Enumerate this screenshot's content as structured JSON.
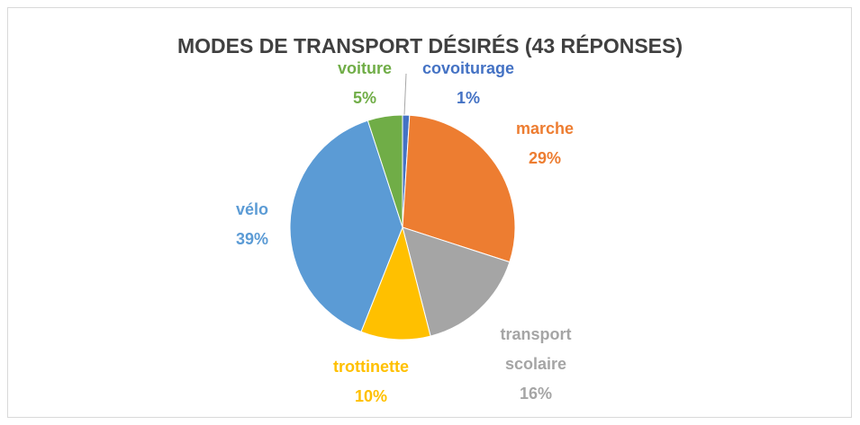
{
  "chart_data": {
    "type": "pie",
    "title": "MODES DE TRANSPORT DÉSIRÉS (43 RÉPONSES)",
    "categories": [
      "covoiturage",
      "marche",
      "transport scolaire",
      "trottinette",
      "vélo",
      "voiture"
    ],
    "values": [
      1,
      29,
      16,
      10,
      39,
      5
    ],
    "value_labels": [
      "1%",
      "29%",
      "16%",
      "10%",
      "39%",
      "5%"
    ],
    "colors": [
      "#4472c4",
      "#ed7d31",
      "#a5a5a5",
      "#ffc000",
      "#5b9bd5",
      "#70ad47"
    ]
  }
}
